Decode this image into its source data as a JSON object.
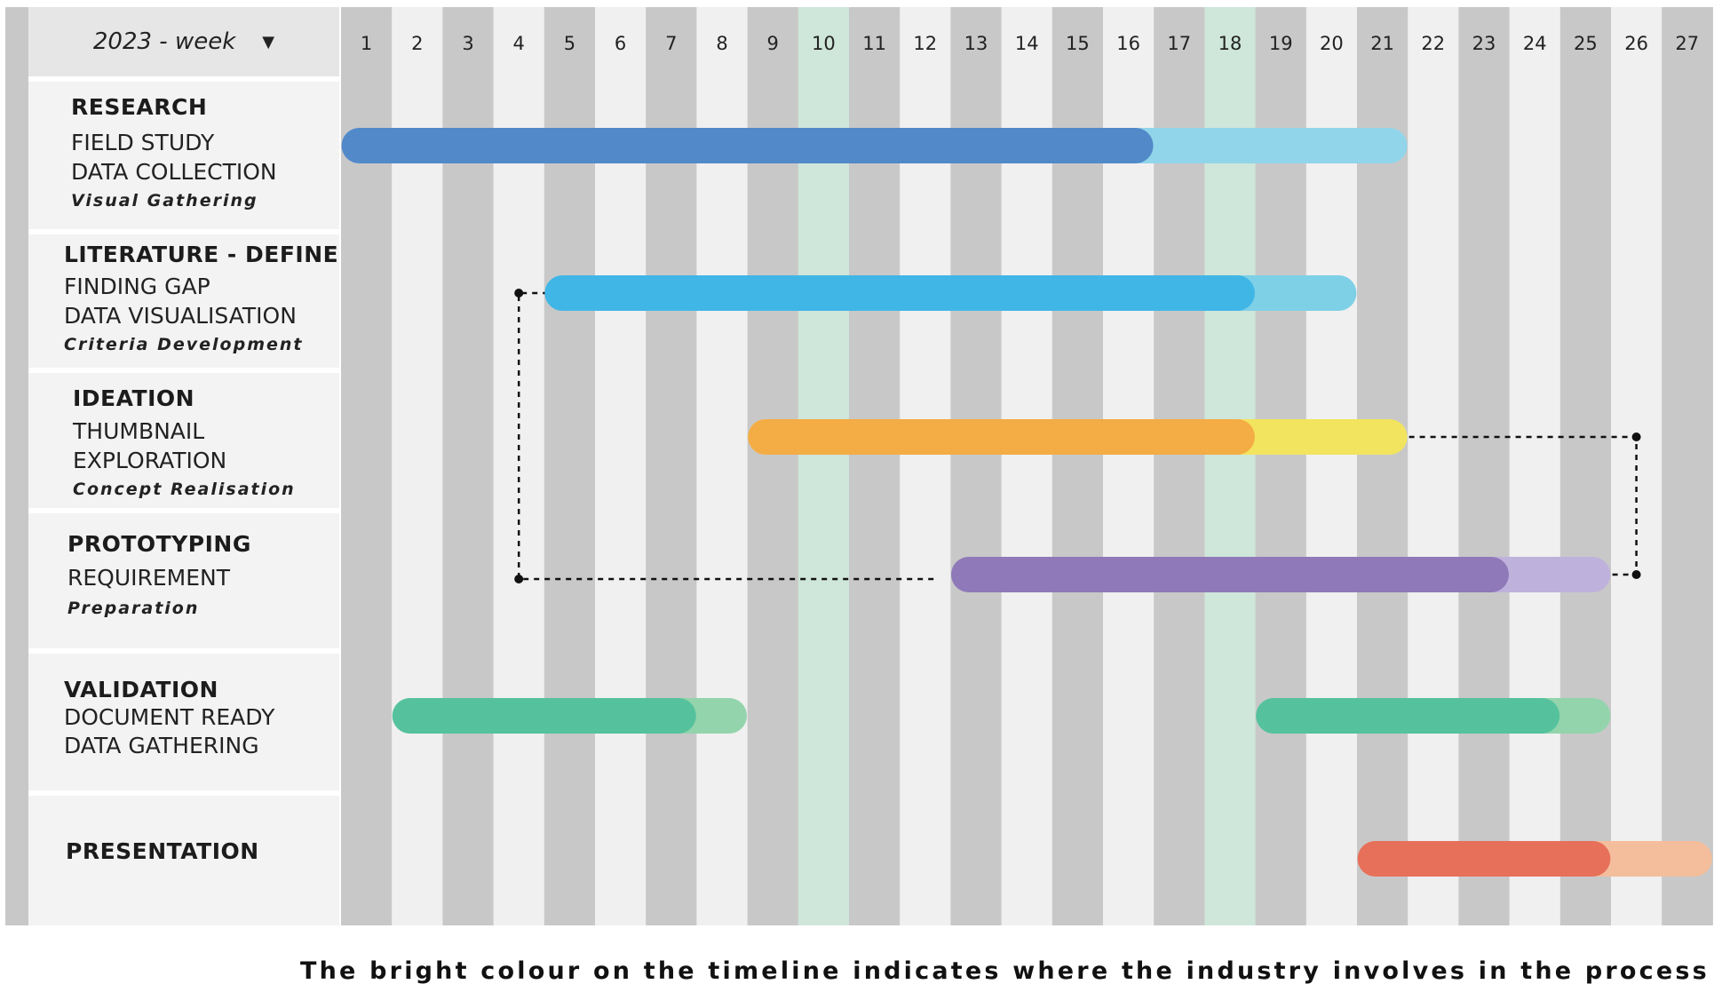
{
  "header": {
    "week_selector_label": "2023 - week",
    "caret": "▼"
  },
  "tasks": [
    {
      "title": "RESEARCH",
      "lines": [
        "FIELD STUDY",
        "DATA COLLECTION"
      ],
      "sub": "Visual Gathering"
    },
    {
      "title": "LITERATURE - DEFINE",
      "lines": [
        "FINDING GAP",
        "DATA VISUALISATION"
      ],
      "sub": "Criteria Development"
    },
    {
      "title": "IDEATION",
      "lines": [
        "THUMBNAIL",
        "EXPLORATION"
      ],
      "sub": "Concept Realisation"
    },
    {
      "title": "PROTOTYPING",
      "lines": [
        "REQUIREMENT"
      ],
      "sub": "Preparation"
    },
    {
      "title": "VALIDATION",
      "lines": [
        "DOCUMENT READY",
        "DATA GATHERING"
      ],
      "sub": ""
    },
    {
      "title": "PRESENTATION",
      "lines": [],
      "sub": ""
    }
  ],
  "caption": "The bright colour on the timeline indicates where the industry involves in the process",
  "chart_data": {
    "type": "gantt",
    "x_axis": "week",
    "weeks": [
      "1",
      "2",
      "3",
      "4",
      "5",
      "6",
      "7",
      "8",
      "9",
      "10",
      "11",
      "12",
      "13",
      "14",
      "15",
      "16",
      "17",
      "18",
      "19",
      "20",
      "21",
      "22",
      "23",
      "24",
      "25",
      "26",
      "27"
    ],
    "highlighted_weeks": [
      10,
      18
    ],
    "colors": {
      "column_dark": "#c8c8c8",
      "column_light": "#f0f0f0",
      "column_highlight": "#cfe6da",
      "side_strip": "#c8c8c8"
    },
    "bars": [
      {
        "task": "RESEARCH",
        "start": 1,
        "bright_end": 16,
        "end": 21,
        "bright_color": "#5289c9",
        "light_color": "#91d5ea"
      },
      {
        "task": "LITERATURE - DEFINE",
        "start": 5,
        "bright_end": 18,
        "end": 20,
        "bright_color": "#40b6e6",
        "light_color": "#7ed0e6"
      },
      {
        "task": "IDEATION",
        "start": 9,
        "bright_end": 18,
        "end": 21,
        "bright_color": "#f4ac45",
        "light_color": "#f2e45e"
      },
      {
        "task": "PROTOTYPING",
        "start": 13,
        "bright_end": 23,
        "end": 25,
        "bright_color": "#8f79b8",
        "light_color": "#beb2dc"
      },
      {
        "task": "VALIDATION",
        "start": 2,
        "bright_end": 7,
        "end": 8,
        "bright_color": "#55c29d",
        "light_color": "#93d4ac"
      },
      {
        "task": "VALIDATION",
        "start": 19,
        "bright_end": 24,
        "end": 25,
        "bright_color": "#55c29d",
        "light_color": "#93d4ac"
      },
      {
        "task": "PRESENTATION",
        "start": 21,
        "bright_end": 25,
        "end": 27,
        "bright_color": "#e7705a",
        "light_color": "#f4be9c"
      }
    ],
    "dependencies": [
      {
        "from": "LITERATURE - DEFINE",
        "to": "PROTOTYPING",
        "week": 4
      },
      {
        "from": "IDEATION",
        "to": "PROTOTYPING",
        "week": 26
      }
    ]
  }
}
